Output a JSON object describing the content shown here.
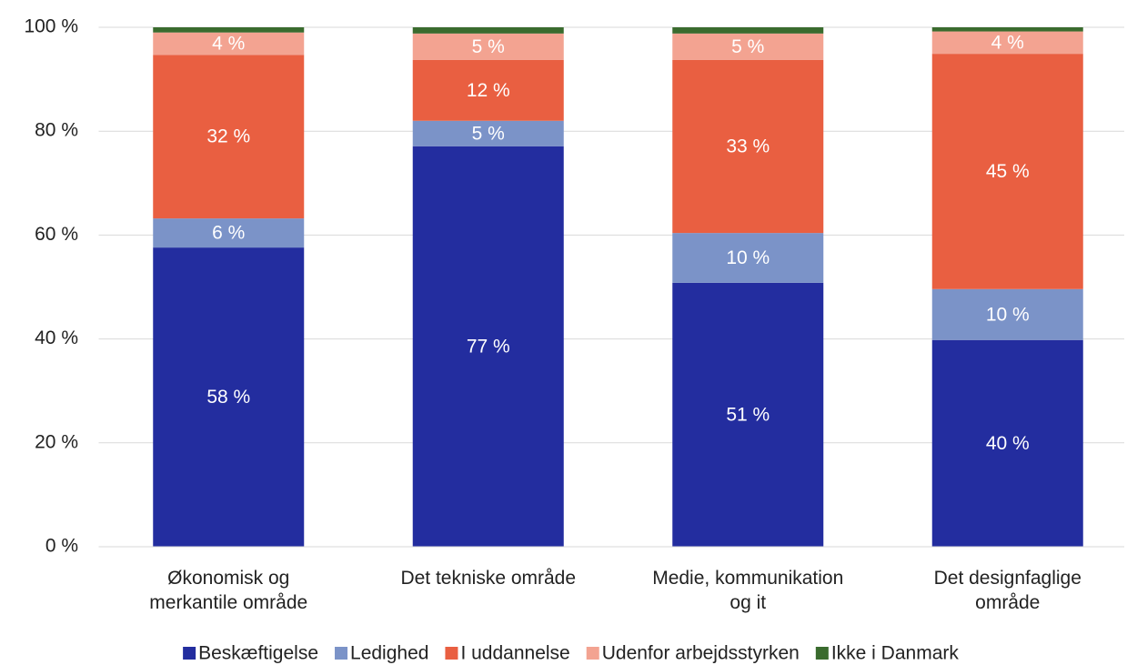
{
  "chart_data": {
    "type": "stacked-bar",
    "categories": [
      "Økonomisk og\nmerkantile område",
      "Det tekniske område",
      "Medie, kommunikation\nog it",
      "Det designfaglige\nområde"
    ],
    "series": [
      {
        "name": "Beskæftigelse",
        "color": "#232d9f",
        "values": [
          57.6,
          77.1,
          50.8,
          39.8
        ],
        "value_labels": [
          "58 %",
          "77 %",
          "51 %",
          "40 %"
        ]
      },
      {
        "name": "Ledighed",
        "color": "#7b93c8",
        "values": [
          5.6,
          4.9,
          9.6,
          9.8
        ],
        "value_labels": [
          "6 %",
          "5 %",
          "10 %",
          "10 %"
        ]
      },
      {
        "name": "I uddannelse",
        "color": "#e95f41",
        "values": [
          31.5,
          11.7,
          33.3,
          45.3
        ],
        "value_labels": [
          "32 %",
          "12 %",
          "33 %",
          "45 %"
        ]
      },
      {
        "name": "Udenfor arbejdsstyrken",
        "color": "#f3a391",
        "values": [
          4.3,
          5.1,
          5.1,
          4.3
        ],
        "value_labels": [
          "4 %",
          "5 %",
          "5 %",
          "4 %"
        ]
      },
      {
        "name": "Ikke i Danmark",
        "color": "#3a6b2e",
        "values": [
          1.0,
          1.2,
          1.2,
          0.8
        ]
      }
    ],
    "ylim": [
      0,
      100
    ],
    "yticks": [
      {
        "value": 0,
        "label": "0 %"
      },
      {
        "value": 20,
        "label": "20 %"
      },
      {
        "value": 40,
        "label": "40 %"
      },
      {
        "value": 60,
        "label": "60 %"
      },
      {
        "value": 80,
        "label": "80 %"
      },
      {
        "value": 100,
        "label": "100 %"
      }
    ],
    "grid": true,
    "legend": "bottom"
  }
}
